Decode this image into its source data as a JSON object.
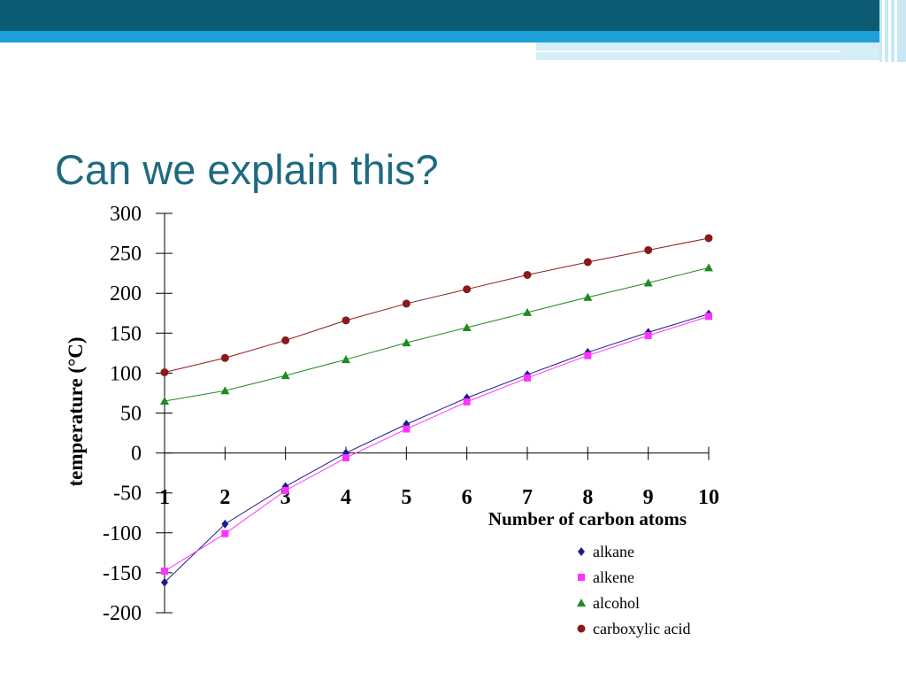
{
  "chart_data": {
    "type": "line",
    "title": "Can we explain this?",
    "x_label": "Number of carbon atoms",
    "y_label": "temperature (°C)",
    "x": [
      1,
      2,
      3,
      4,
      5,
      6,
      7,
      8,
      9,
      10
    ],
    "xlim": [
      1,
      10
    ],
    "xticks": [
      1,
      2,
      3,
      4,
      5,
      6,
      7,
      8,
      9,
      10
    ],
    "ylim": [
      -200,
      300
    ],
    "yticks": [
      -200,
      -150,
      -100,
      -50,
      0,
      50,
      100,
      150,
      200,
      250,
      300
    ],
    "legend": "bottom-right",
    "series": [
      {
        "name": "alkane",
        "color": "#1c1c8a",
        "marker": "diamond",
        "values": [
          -162,
          -89,
          -42,
          0,
          36,
          69,
          98,
          126,
          151,
          174
        ]
      },
      {
        "name": "alkene",
        "color": "#ff33ff",
        "marker": "square",
        "values": [
          -148,
          -101,
          -47,
          -6,
          30,
          64,
          94,
          122,
          147,
          171
        ]
      },
      {
        "name": "alcohol",
        "color": "#1f8a1f",
        "marker": "triangle",
        "values": [
          65,
          78,
          97,
          117,
          138,
          157,
          176,
          195,
          213,
          232
        ]
      },
      {
        "name": "carboxylic acid",
        "color": "#8b1a1a",
        "marker": "circle",
        "values": [
          101,
          119,
          141,
          166,
          187,
          205,
          223,
          239,
          254,
          269
        ]
      }
    ]
  }
}
